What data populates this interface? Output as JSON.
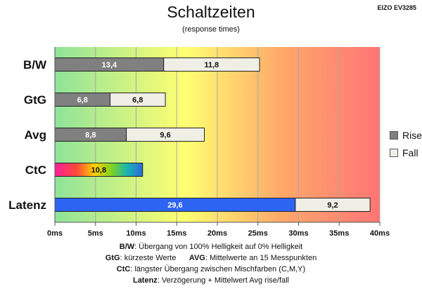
{
  "chart_data": {
    "type": "bar",
    "orientation": "horizontal",
    "stacked": true,
    "title": "Schaltzeiten",
    "subtitle": "(response times)",
    "model": "EIZO EV3285",
    "categories": [
      "B/W",
      "GtG",
      "Avg",
      "CtC",
      "Latenz"
    ],
    "series": [
      {
        "name": "Rise",
        "values": [
          13.4,
          6.8,
          8.8,
          10.8,
          29.6
        ],
        "color": "#808080"
      },
      {
        "name": "Fall",
        "values": [
          11.8,
          6.8,
          9.6,
          null,
          9.2
        ],
        "color": "#efefe6"
      }
    ],
    "value_labels": [
      [
        "13,4",
        "11,8"
      ],
      [
        "6,8",
        "6,8"
      ],
      [
        "8,8",
        "9,6"
      ],
      [
        "10,8",
        ""
      ],
      [
        "29,6",
        "9,2"
      ]
    ],
    "xlim": [
      0,
      40
    ],
    "xticks": [
      0,
      5,
      10,
      15,
      20,
      25,
      30,
      35,
      40
    ],
    "xtick_labels": [
      "0ms",
      "5ms",
      "10ms",
      "15ms",
      "20ms",
      "25ms",
      "30ms",
      "35ms",
      "40ms"
    ],
    "grid": true,
    "legend": "right",
    "background_gradient": [
      "#8fe39a",
      "#ffff72",
      "#ffa86a",
      "#ff7575"
    ],
    "special_bar_colors": {
      "CtC": "rainbow",
      "Latenz": "#2e64f2"
    }
  },
  "notes": [
    {
      "key": "B/W",
      "text": ":  Übergang von 100% Helligkeit auf 0% Helligkeit"
    },
    {
      "key": "GtG",
      "text": ": kürzeste  Werte",
      "key2": "AVG",
      "text2": ": Mittelwerte  an 15 Messpunkten"
    },
    {
      "key": "CtC",
      "text": ": längster Übergang  zwischen Mischfarben  (C,M,Y)"
    },
    {
      "key": "Latenz",
      "text": ": Verzögerung  + Mittelwert  Avg rise/fall"
    }
  ]
}
